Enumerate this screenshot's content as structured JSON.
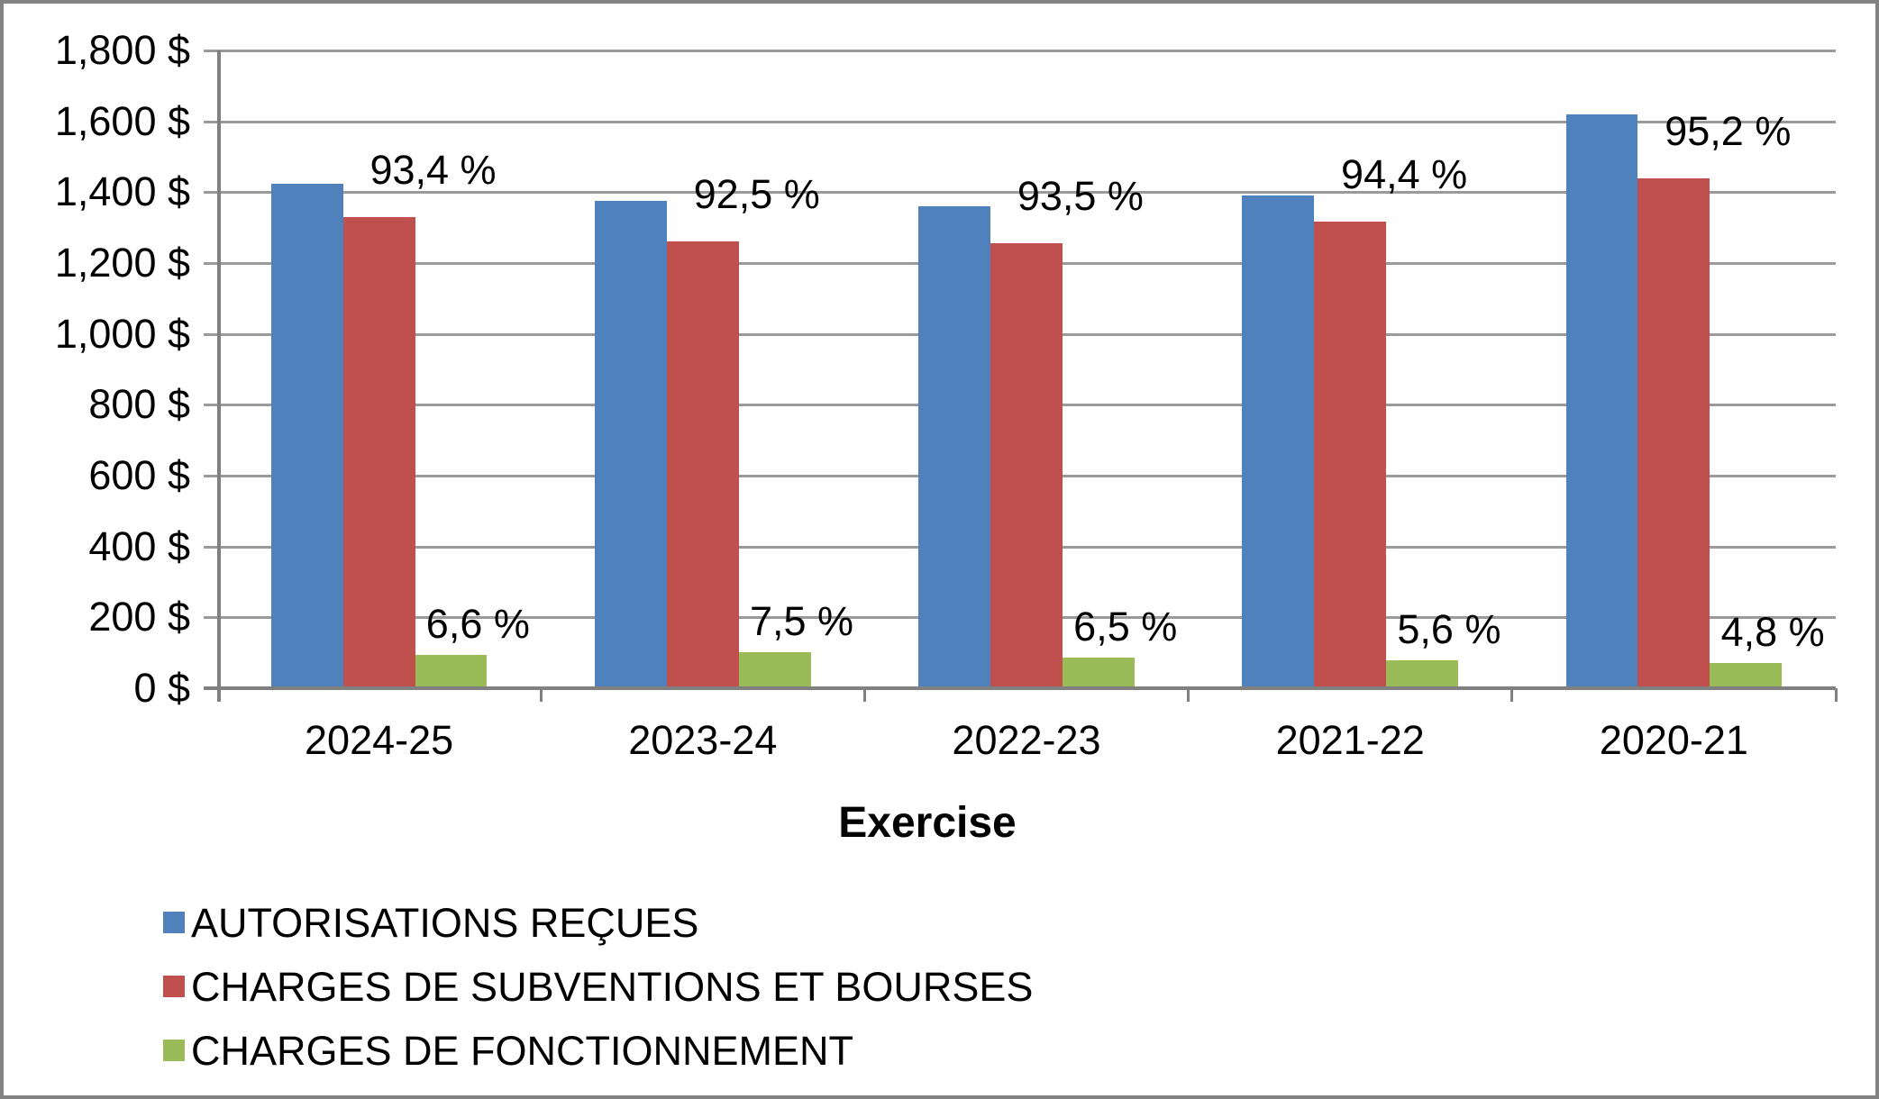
{
  "chart_data": {
    "type": "bar",
    "categories": [
      "2024-25",
      "2023-24",
      "2022-23",
      "2021-22",
      "2020-21"
    ],
    "series": [
      {
        "key": "autorisations-recues",
        "name": "AUTORISATIONS REÇUES",
        "color": "#4F81BD",
        "values": [
          1425,
          1375,
          1360,
          1390,
          1620
        ],
        "data_labels": [
          "",
          "",
          "",
          "",
          ""
        ]
      },
      {
        "key": "charges-subventions-bourses",
        "name": "CHARGES DE SUBVENTIONS ET BOURSES",
        "color": "#C0504D",
        "values": [
          1330,
          1260,
          1255,
          1318,
          1440
        ],
        "data_labels": [
          "93,4 %",
          "92,5 %",
          "93,5 %",
          "94,4 %",
          "95,2 %"
        ]
      },
      {
        "key": "charges-fonctionnement",
        "name": "CHARGES DE FONCTIONNEMENT",
        "color": "#9BBB59",
        "values": [
          94,
          102,
          87,
          80,
          72
        ],
        "data_labels": [
          "6,6 %",
          "7,5 %",
          "6,5 %",
          "5,6 %",
          "4,8 %"
        ]
      }
    ],
    "xlabel": "Exercise",
    "ylabel": "",
    "ylim": [
      0,
      1800
    ],
    "ytick_interval": 200,
    "ytick_labels": [
      "1,800 $",
      "1,600 $",
      "1,400 $",
      "1,200 $",
      "1,000 $",
      "800 $",
      "600 $",
      "400 $",
      "200 $",
      "0 $"
    ],
    "grid": "horizontal",
    "legend_position": "bottom-left",
    "bar_gap_width_percent": 150
  },
  "colors": {
    "background": "#FFFFFF",
    "border": "#828282",
    "gridline": "#9A9A9A",
    "axis": "#808080",
    "text": "#000000"
  }
}
